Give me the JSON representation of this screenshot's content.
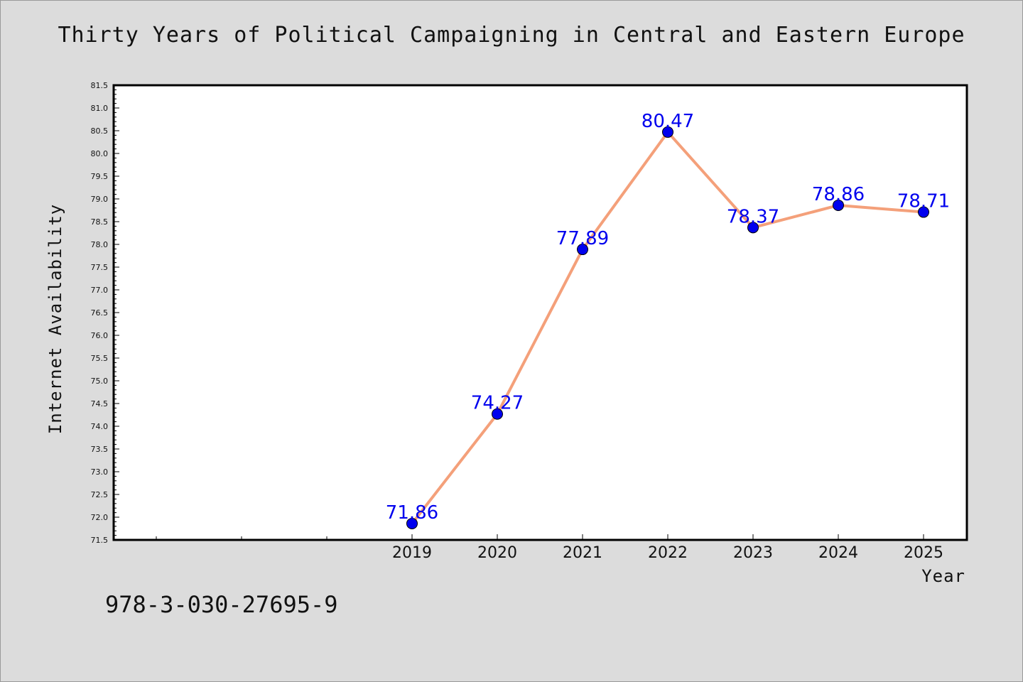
{
  "chart_data": {
    "type": "line",
    "title": "Thirty Years of Political Campaigning in Central and Eastern Europe",
    "xlabel": "Year",
    "ylabel": "Internet Availability",
    "x": [
      "2019",
      "2020",
      "2021",
      "2022",
      "2023",
      "2024",
      "2025"
    ],
    "values": [
      71.86,
      74.27,
      77.89,
      80.47,
      78.37,
      78.86,
      78.71
    ],
    "data_labels": [
      "71.86",
      "74.27",
      "77.89",
      "80.47",
      "78.37",
      "78.86",
      "78.71"
    ],
    "ylim": [
      71.5,
      81.5
    ],
    "y_ticks": [
      "71.5",
      "72.0",
      "72.5",
      "73.0",
      "73.5",
      "74.0",
      "74.5",
      "75.0",
      "75.5",
      "76.0",
      "76.5",
      "77.0",
      "77.5",
      "78.0",
      "78.5",
      "79.0",
      "79.5",
      "80.0",
      "80.5",
      "81.0",
      "81.5"
    ],
    "grid": false,
    "line_color": "#f4a07a",
    "marker_color": "#0000ee",
    "label_color": "#0000ee"
  },
  "footer": {
    "isbn": "978-3-030-27695-9"
  }
}
